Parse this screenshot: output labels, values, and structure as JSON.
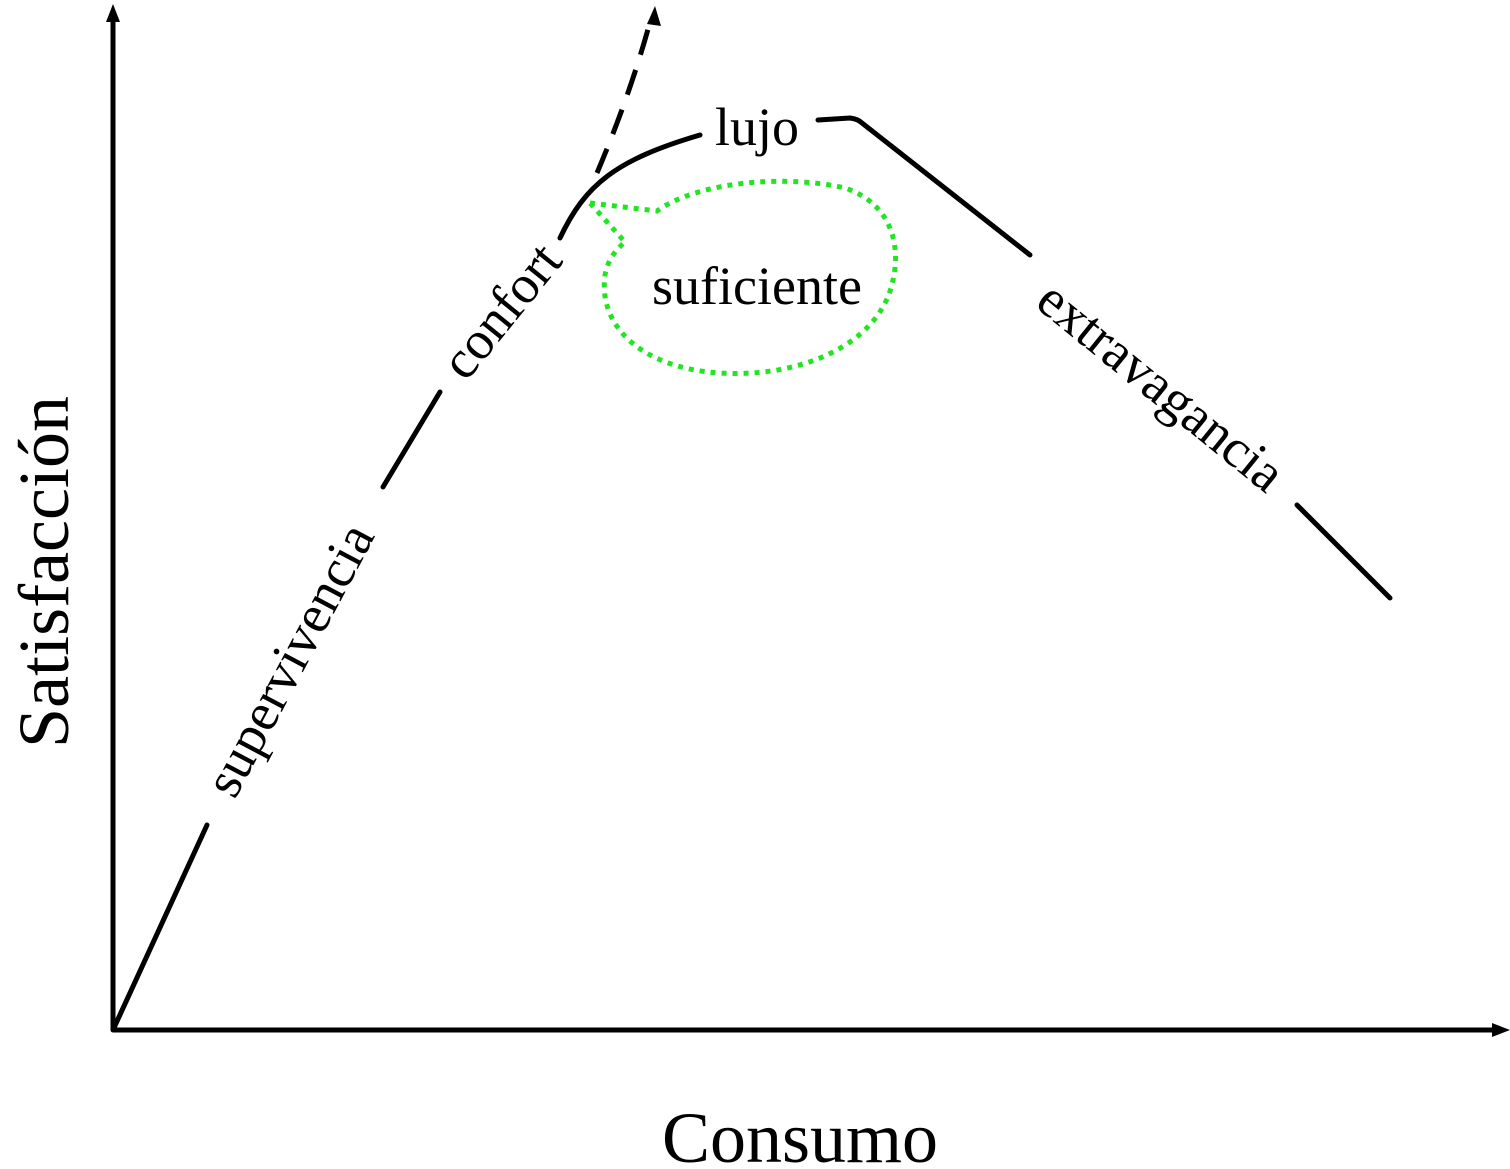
{
  "axes": {
    "x_label": "Consumo",
    "y_label": "Satisfacción"
  },
  "stages": [
    {
      "label": "supervivencia"
    },
    {
      "label": "confort"
    },
    {
      "label": "lujo"
    },
    {
      "label": "extravagancia"
    }
  ],
  "callout": {
    "label": "suficiente"
  }
}
